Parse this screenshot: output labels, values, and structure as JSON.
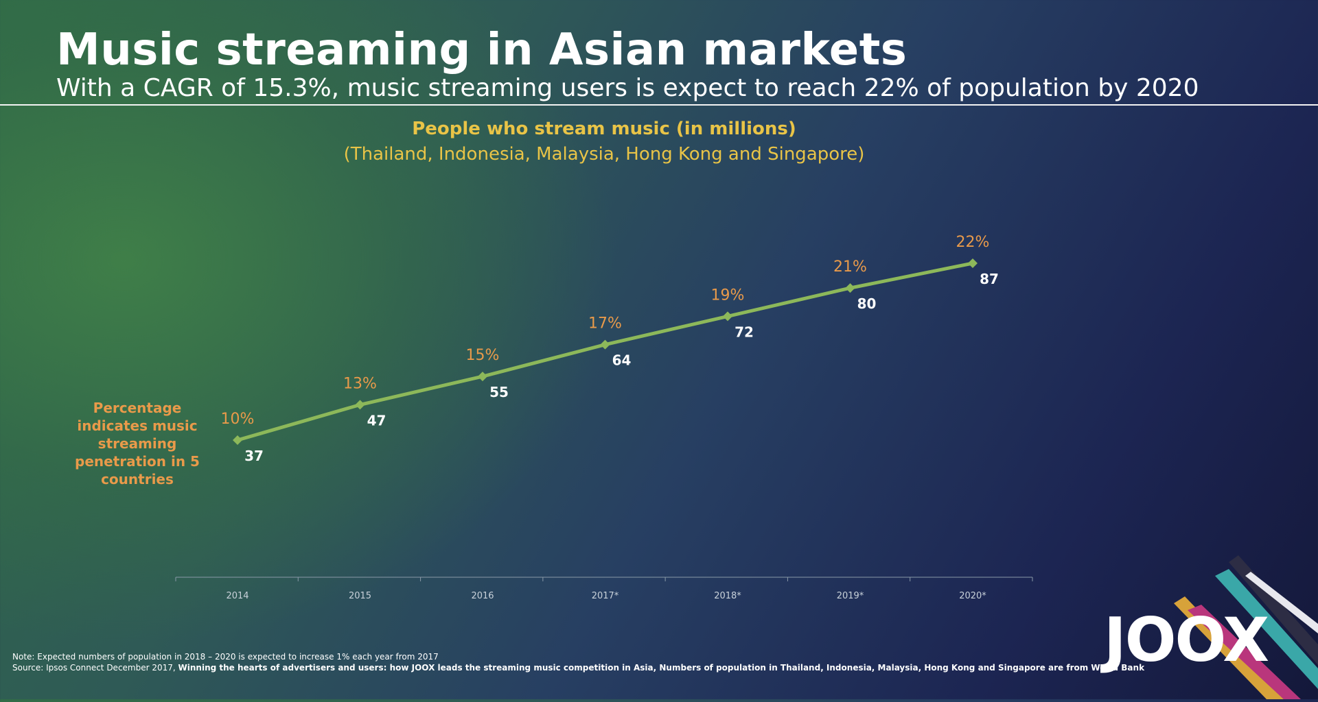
{
  "header": {
    "title": "Music streaming in Asian markets",
    "subtitle": "With a CAGR of 15.3%, music streaming users is expect to reach 22% of population by 2020"
  },
  "side_note": "Percentage indicates music streaming penetration in 5 countries",
  "footer": {
    "note": "Note: Expected numbers of population in 2018 – 2020 is expected to increase 1% each year from 2017",
    "source_prefix": "Source: Ipsos Connect December 2017, ",
    "source_bold": "Winning the hearts of advertisers and users: how JOOX leads the streaming music competition in Asia, Numbers of population in Thailand, Indonesia, Malaysia, Hong Kong and Singapore are from World Bank"
  },
  "logo": {
    "text": "JOOX"
  },
  "colors": {
    "line": "#8db85a",
    "pct_label": "#e99a4a",
    "value_label": "#ffffff",
    "chart_title": "#e9c447",
    "axis": "#8a9aa8",
    "axis_label": "#c9d2da"
  },
  "chart_data": {
    "type": "line",
    "title": "People who stream music (in millions)",
    "subtitle": "(Thailand, Indonesia, Malaysia, Hong Kong and Singapore)",
    "categories": [
      "2014",
      "2015",
      "2016",
      "2017*",
      "2018*",
      "2019*",
      "2020*"
    ],
    "values": [
      37,
      47,
      55,
      64,
      72,
      80,
      87
    ],
    "percent_labels": [
      "10%",
      "13%",
      "15%",
      "17%",
      "19%",
      "21%",
      "22%"
    ],
    "xlabel": "",
    "ylabel": "",
    "grid": false,
    "legend": "none"
  }
}
